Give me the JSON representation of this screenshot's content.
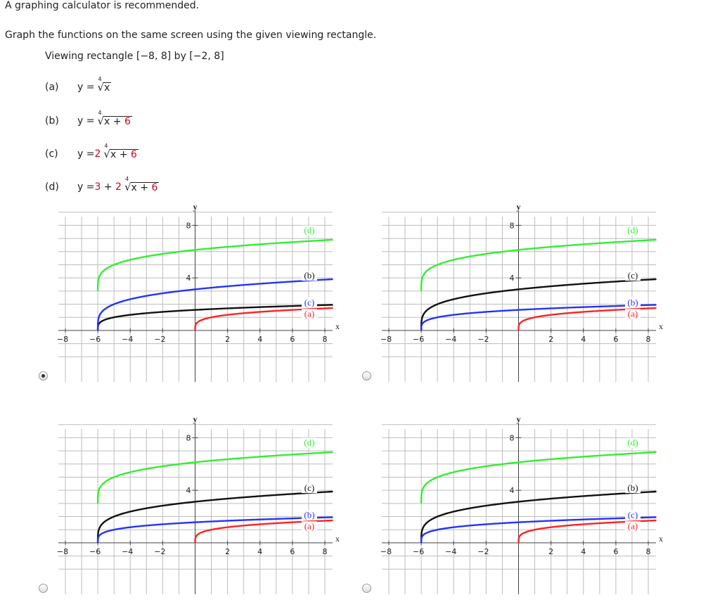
{
  "intro": "A graphing calculator is recommended.",
  "instruction": "Graph the functions on the same screen using the given viewing rectangle.",
  "viewing": "Viewing rectangle [−8, 8] by [−2, 8]",
  "functions": [
    {
      "label": "(a)",
      "prefix": "y = ",
      "coef": "",
      "constant": "",
      "index": "4",
      "radicand": "x",
      "radicand_red": ""
    },
    {
      "label": "(b)",
      "prefix": "y = ",
      "coef": "",
      "constant": "",
      "index": "4",
      "radicand": "x + ",
      "radicand_red": "6"
    },
    {
      "label": "(c)",
      "prefix": "y = ",
      "coef": "2",
      "constant": "",
      "index": "4",
      "radicand": "x + ",
      "radicand_red": "6"
    },
    {
      "label": "(d)",
      "prefix": "y = ",
      "coef": "2",
      "constant": "3",
      "index": "4",
      "radicand": "x + ",
      "radicand_red": "6"
    }
  ],
  "axis": {
    "x_label": "x",
    "y_label": "y",
    "x_ticks": [
      "−8",
      "−6",
      "−4",
      "−2",
      "2",
      "4",
      "6",
      "8"
    ],
    "y_ticks": [
      "4",
      "8"
    ]
  },
  "colors": {
    "green": "#33ee33",
    "black": "#111111",
    "blue": "#2233ff",
    "red": "#ff2222"
  },
  "chart_data": [
    {
      "type": "line",
      "xlim": [
        -8,
        8
      ],
      "ylim": [
        -2,
        8
      ],
      "xlabel": "x",
      "ylabel": "y",
      "series": [
        {
          "name": "(d)",
          "color": "green",
          "fn": "3 + 2 * (x+6)^(1/4)",
          "shift": 6,
          "coef": 2,
          "const": 3
        },
        {
          "name": "(b)",
          "color": "black",
          "fn": "(x+6)^(1/4)",
          "shift": 6,
          "coef": 1,
          "const": 0
        },
        {
          "name": "(c)",
          "color": "blue",
          "fn": "2 * (x+6)^(1/4)",
          "shift": 6,
          "coef": 2,
          "const": 0
        },
        {
          "name": "(a)",
          "color": "red",
          "fn": "x^(1/4)",
          "shift": 0,
          "coef": 1,
          "const": 0
        }
      ],
      "selected": true
    },
    {
      "type": "line",
      "xlim": [
        -8,
        8
      ],
      "ylim": [
        -2,
        8
      ],
      "xlabel": "x",
      "ylabel": "y",
      "series": [
        {
          "name": "(d)",
          "color": "green",
          "fn": "3 + 2 * (x+6)^(1/4)",
          "shift": 6,
          "coef": 2,
          "const": 3
        },
        {
          "name": "(c)",
          "color": "black",
          "fn": "2 * (x+6)^(1/4)",
          "shift": 6,
          "coef": 2,
          "const": 0
        },
        {
          "name": "(b)",
          "color": "blue",
          "fn": "(x+6)^(1/4)",
          "shift": 6,
          "coef": 1,
          "const": 0
        },
        {
          "name": "(a)",
          "color": "red",
          "fn": "x^(1/4)",
          "shift": 0,
          "coef": 1,
          "const": 0
        }
      ],
      "selected": false
    },
    {
      "type": "line",
      "xlim": [
        -8,
        8
      ],
      "ylim": [
        -2,
        8
      ],
      "xlabel": "x",
      "ylabel": "y",
      "series": [
        {
          "name": "(d)",
          "color": "green",
          "fn": "3 + 2 * (x+6)^(1/4)",
          "shift": 6,
          "coef": 2,
          "const": 3
        },
        {
          "name": "(c)",
          "color": "black",
          "fn": "2 * (x+6)^(1/4)",
          "shift": 6,
          "coef": 2,
          "const": 0
        },
        {
          "name": "(b)",
          "color": "blue",
          "fn": "(x+6)^(1/4)",
          "shift": 6,
          "coef": 1,
          "const": 0
        },
        {
          "name": "(a)",
          "color": "red",
          "fn": "x^(1/4)",
          "shift": 0,
          "coef": 1,
          "const": 0
        }
      ],
      "selected": false
    },
    {
      "type": "line",
      "xlim": [
        -8,
        8
      ],
      "ylim": [
        -2,
        8
      ],
      "xlabel": "x",
      "ylabel": "y",
      "series": [
        {
          "name": "(d)",
          "color": "green",
          "fn": "3 + 2 * (x+6)^(1/4)",
          "shift": 6,
          "coef": 2,
          "const": 3
        },
        {
          "name": "(b)",
          "color": "black",
          "fn": "2 * (x+6)^(1/4)",
          "shift": 6,
          "coef": 2,
          "const": 0
        },
        {
          "name": "(c)",
          "color": "blue",
          "fn": "(x+6)^(1/4)",
          "shift": 6,
          "coef": 1,
          "const": 0
        },
        {
          "name": "(a)",
          "color": "red",
          "fn": "x^(1/4)",
          "shift": 0,
          "coef": 1,
          "const": 0
        }
      ],
      "selected": false
    }
  ]
}
